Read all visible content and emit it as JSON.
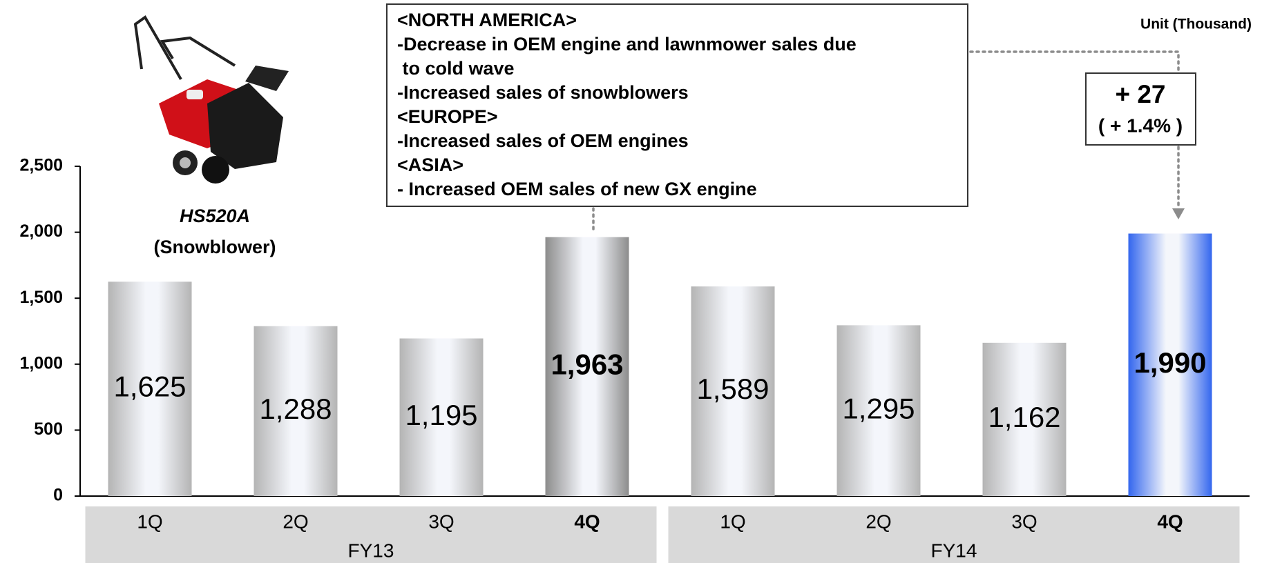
{
  "chart_data": {
    "type": "bar",
    "categories": [
      "1Q",
      "2Q",
      "3Q",
      "4Q",
      "1Q",
      "2Q",
      "3Q",
      "4Q"
    ],
    "groups": [
      "FY13",
      "FY14"
    ],
    "values": [
      1625,
      1288,
      1195,
      1963,
      1589,
      1295,
      1162,
      1990
    ],
    "value_labels": [
      "1,625",
      "1,288",
      "1,195",
      "1,963",
      "1,589",
      "1,295",
      "1,162",
      "1,990"
    ],
    "colors": [
      "#b4b4b4",
      "#b4b4b4",
      "#b4b4b4",
      "#8c8c8c",
      "#b4b4b4",
      "#b4b4b4",
      "#b4b4b4",
      "#3366ee"
    ],
    "emphasis": [
      false,
      false,
      false,
      true,
      false,
      false,
      false,
      true
    ],
    "ylim": [
      0,
      2500
    ],
    "yticks": [
      0,
      500,
      {
        "value": 1000,
        "label": "1,000"
      },
      {
        "value": 1500,
        "label": "1,500"
      },
      {
        "value": 2000,
        "label": "2,000"
      },
      {
        "value": 2500,
        "label": "2,500"
      }
    ],
    "unit": "Unit (Thousand)",
    "product": {
      "model": "HS520A",
      "description": "(Snowblower)"
    },
    "annotation_lines": [
      "<NORTH AMERICA>",
      "-Decrease in OEM engine and lawnmower sales due",
      " to cold wave",
      "-Increased sales of snowblowers",
      "<EUROPE>",
      "-Increased sales of OEM engines",
      "<ASIA>",
      "- Increased OEM sales of new GX engine"
    ],
    "change": {
      "amount": "+ 27",
      "percent": "( + 1.4% )"
    }
  }
}
